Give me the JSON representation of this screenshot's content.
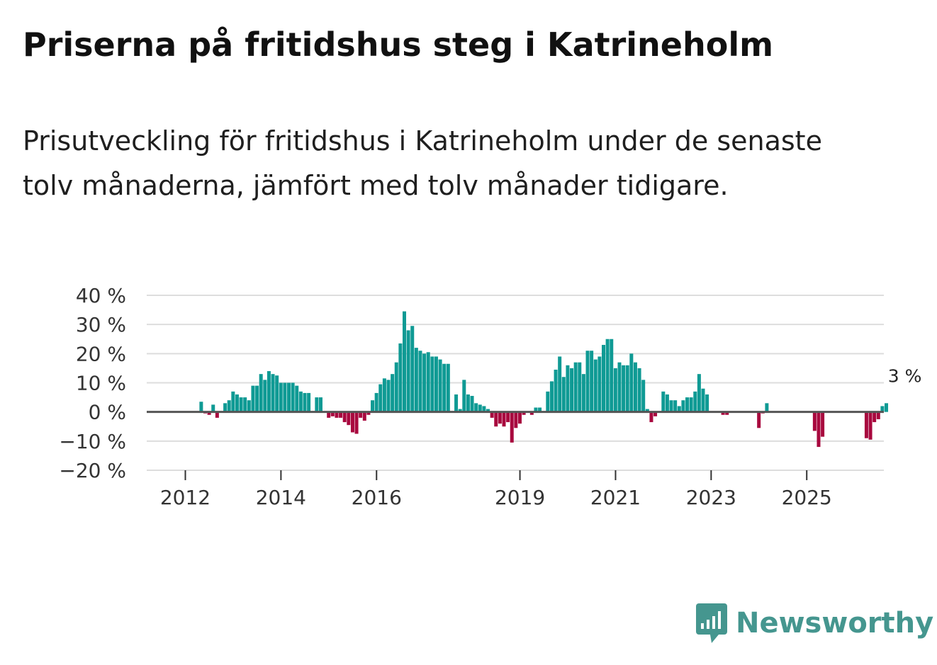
{
  "title": "Priserna på fritidshus steg i Katrineholm",
  "subtitle": "Prisutveckling för fritidshus i Katrineholm under de senaste tolv månaderna, jämfört med tolv månader tidigare.",
  "brand": {
    "name": "Newsworthy",
    "icon": "newsworthy-logo-icon"
  },
  "colors": {
    "positive": "#0f9a94",
    "negative": "#a8083e",
    "zero_line": "#555555",
    "grid": "#dddddd",
    "brand": "#45968f"
  },
  "chart_data": {
    "type": "bar",
    "title": "Priserna på fritidshus steg i Katrineholm",
    "xlabel": "",
    "ylabel": "",
    "ylim": [
      -20,
      40
    ],
    "y_ticks": [
      40,
      30,
      20,
      10,
      0,
      -10,
      -20
    ],
    "y_tick_labels": [
      "40 %",
      "30 %",
      "20 %",
      "10 %",
      "0 %",
      "−10 %",
      "−20 %"
    ],
    "x_ticks": [
      2012,
      2014,
      2016,
      2019,
      2021,
      2023,
      2025
    ],
    "x_tick_labels": [
      "2012",
      "2014",
      "2016",
      "2019",
      "2021",
      "2023",
      "2025"
    ],
    "start": "2011-05",
    "frequency": "monthly",
    "values": [
      null,
      null,
      null,
      null,
      null,
      null,
      null,
      null,
      null,
      null,
      null,
      null,
      3.5,
      -0.5,
      -1,
      2.5,
      -2,
      null,
      3,
      4,
      7,
      6,
      5,
      5,
      4,
      9,
      9,
      13,
      11,
      14,
      13,
      12.5,
      10,
      10,
      10,
      10,
      9,
      7,
      6.5,
      6.5,
      null,
      5,
      5,
      null,
      -2,
      -1.5,
      -2,
      -2,
      -3.5,
      -4.5,
      -7,
      -7.5,
      -2,
      -3,
      -1,
      4,
      6.5,
      9.5,
      11.5,
      11,
      13,
      17,
      23.5,
      34.5,
      28,
      29.5,
      22,
      21,
      20,
      20.5,
      19,
      19,
      18,
      16.5,
      16.5,
      null,
      6,
      1,
      11,
      6,
      5.5,
      3,
      2.5,
      2,
      1,
      -2,
      -5,
      -4,
      -5,
      -3.5,
      -10.5,
      -5.5,
      -4,
      -1,
      null,
      -1,
      1.5,
      1.5,
      null,
      7,
      10.5,
      14.5,
      19,
      12,
      16,
      15,
      17,
      17,
      13,
      21,
      21,
      18,
      19,
      23,
      25,
      25,
      15,
      17,
      16,
      16,
      20,
      17,
      15,
      11,
      1,
      -3.5,
      -1.5,
      null,
      7,
      6,
      4,
      4,
      2,
      4,
      5,
      5,
      7,
      13,
      8,
      6,
      null,
      null,
      null,
      -1,
      -1,
      null,
      null,
      null,
      null,
      null,
      null,
      null,
      -5.5,
      -0.5,
      3,
      null,
      null,
      null,
      null,
      null,
      null,
      null,
      null,
      null,
      null,
      null,
      -6.5,
      -12,
      -8.5,
      null,
      null,
      null,
      null,
      null,
      null,
      null,
      null,
      null,
      null,
      -9,
      -9.5,
      -3.5,
      -2.5,
      2,
      3
    ],
    "annotation": {
      "label": "3 %",
      "value": 3
    }
  }
}
